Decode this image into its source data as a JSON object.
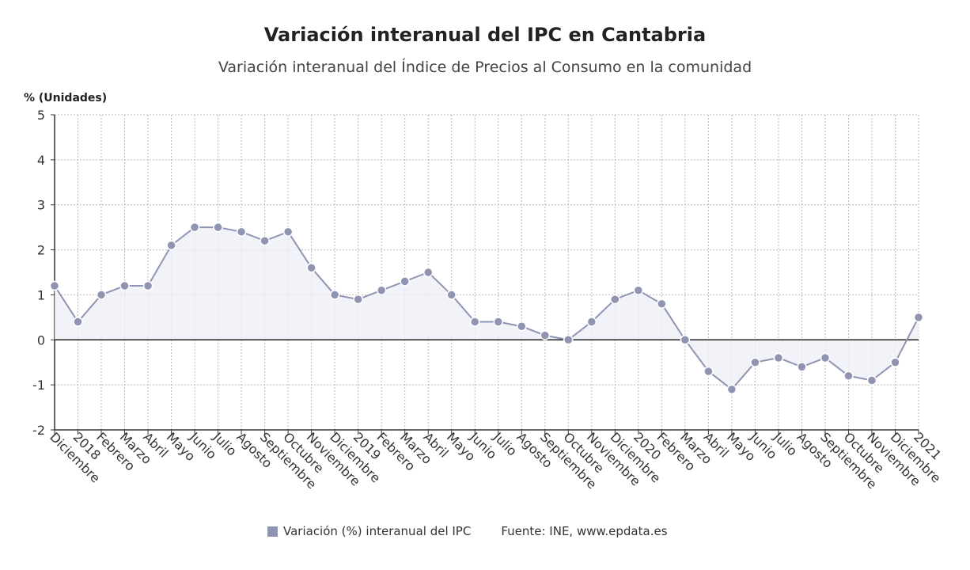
{
  "chart_data": {
    "type": "line",
    "title": "Variación interanual del IPC en Cantabria",
    "subtitle": "Variación interanual del Índice de Precios al Consumo en la comunidad",
    "ylabel": "% (Unidades)",
    "xlabel": "",
    "ylim": [
      -2,
      5
    ],
    "yticks": [
      -2,
      -1,
      0,
      1,
      2,
      3,
      4,
      5
    ],
    "grid": true,
    "legend_position": "bottom",
    "categories": [
      "Diciembre",
      "2018",
      "Febrero",
      "Marzo",
      "Abril",
      "Mayo",
      "Junio",
      "Julio",
      "Agosto",
      "Septiembre",
      "Octubre",
      "Noviembre",
      "Diciembre",
      "2019",
      "Febrero",
      "Marzo",
      "Abril",
      "Mayo",
      "Junio",
      "Julio",
      "Agosto",
      "Septiembre",
      "Octubre",
      "Noviembre",
      "Diciembre",
      "2020",
      "Febrero",
      "Marzo",
      "Abril",
      "Mayo",
      "Junio",
      "Julio",
      "Agosto",
      "Septiembre",
      "Octubre",
      "Noviembre",
      "Diciembre",
      "2021"
    ],
    "series": [
      {
        "name": "Variación (%) interanual del IPC",
        "color": "#9094b3",
        "values": [
          1.2,
          0.4,
          1.0,
          1.2,
          1.2,
          2.1,
          2.5,
          2.5,
          2.4,
          2.2,
          2.4,
          1.6,
          1.0,
          0.9,
          1.1,
          1.3,
          1.5,
          1.0,
          0.4,
          0.4,
          0.3,
          0.1,
          0.0,
          0.4,
          0.9,
          1.1,
          0.8,
          0.0,
          -0.7,
          -1.1,
          -0.5,
          -0.4,
          -0.6,
          -0.4,
          -0.8,
          -0.9,
          -0.5,
          0.5
        ]
      }
    ],
    "source": "Fuente: INE, www.epdata.es"
  }
}
